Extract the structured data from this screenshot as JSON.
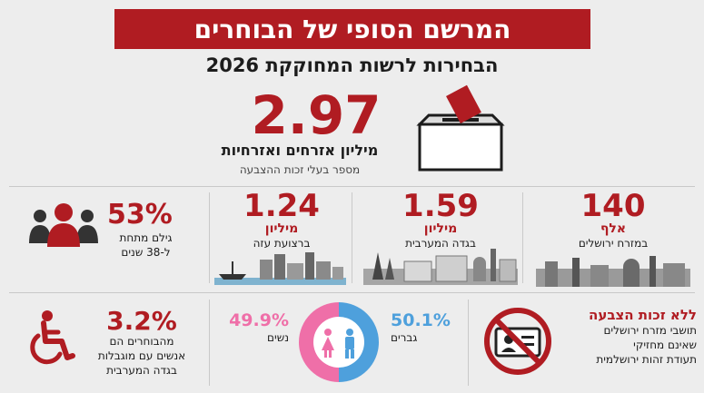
{
  "title": "המרשם הסופי של הבוחרים",
  "subtitle": "הבחירות לרשות המחוקקת 2026",
  "total": {
    "value": "2.97",
    "label": "מיליון אזרחים ואזרחיות",
    "caption": "מספר בעלי זכות ההצבעה"
  },
  "regions": [
    {
      "value": "140",
      "unit": "אלף",
      "label": "במזרח ירושלים"
    },
    {
      "value": "1.59",
      "unit": "מיליון",
      "label": "בגדה המערבית"
    },
    {
      "value": "1.24",
      "unit": "מיליון",
      "label": "ברצועת עזה"
    }
  ],
  "youth": {
    "value": "53%",
    "label_line1": "גילם מתחת",
    "label_line2": "ל-38 שנים"
  },
  "no_vote": {
    "title": "ללא זכות הצבעה",
    "line1": "תושבי מזרח ירושלים",
    "line2": "שאינם מחזיקי",
    "line3": "תעודת זהות ירושלמית"
  },
  "gender": {
    "male_value": "50.1%",
    "male_label": "גברים",
    "female_value": "49.9%",
    "female_label": "נשים",
    "male_color": "#4ea0dc",
    "female_color": "#ef6fa8"
  },
  "disability": {
    "value": "3.2%",
    "line1": "מהבוחרים הם",
    "line2": "אנשים עם מוגבלות",
    "line3": "בגדה המערבית"
  },
  "colors": {
    "accent": "#b01c22"
  }
}
